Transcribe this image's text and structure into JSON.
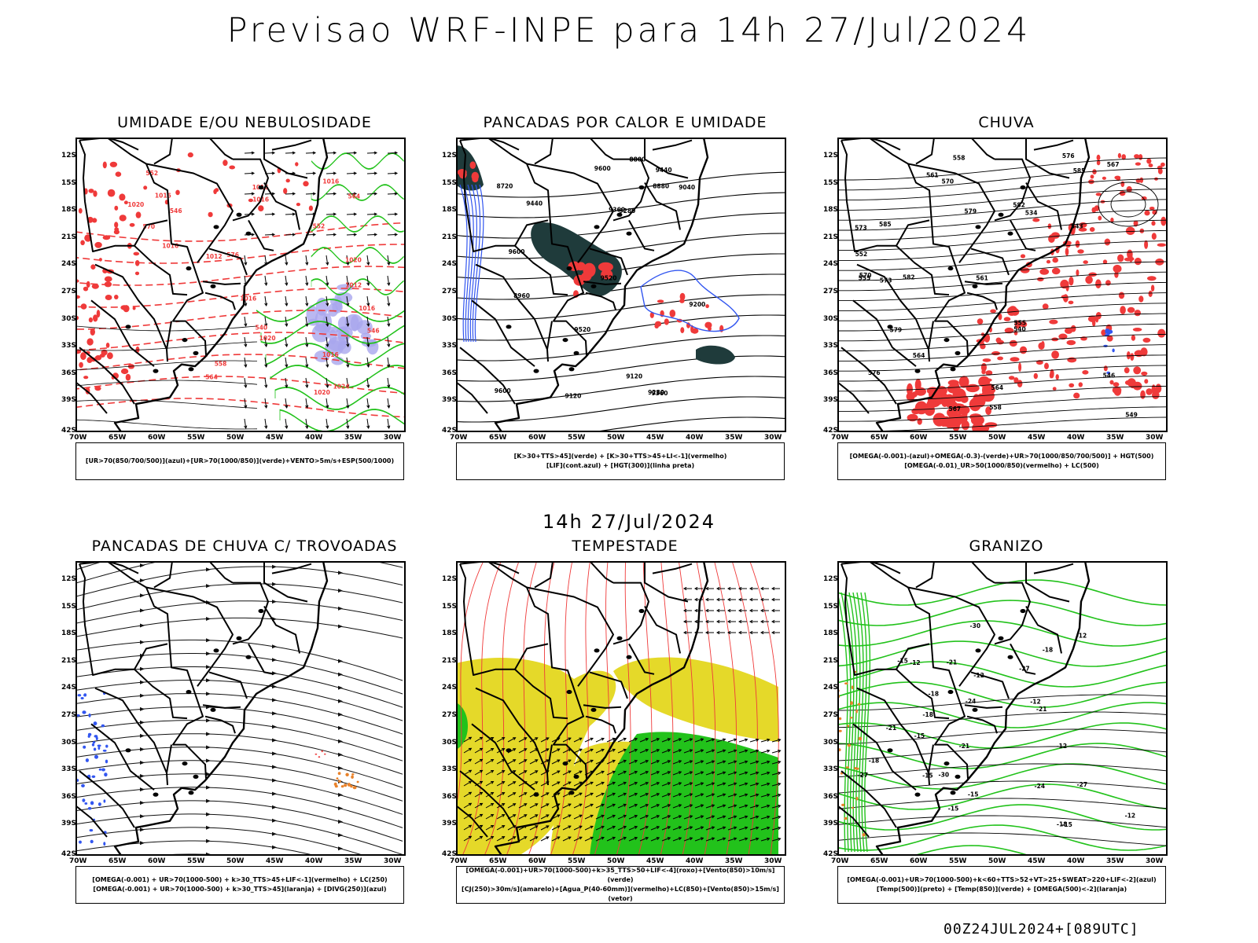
{
  "header": {
    "title": "Previsao WRF-INPE  para 14h 27/Jul/2024"
  },
  "middle": {
    "title": "14h 27/Jul/2024"
  },
  "footer": {
    "run_label": "00Z24JUL2024+[089UTC]"
  },
  "axes": {
    "lat_labels": [
      "12S",
      "15S",
      "18S",
      "21S",
      "24S",
      "27S",
      "30S",
      "33S",
      "36S",
      "39S",
      "42S"
    ],
    "lon_labels": [
      "70W",
      "65W",
      "60W",
      "55W",
      "50W",
      "45W",
      "40W",
      "35W",
      "30W"
    ]
  },
  "panels": [
    {
      "title": "UMIDADE E/OU NEBULOSIDADE",
      "legend": [
        "[UR>70(850/700/500)](azul)+[UR>70(1000/850)](verde)+VENTO>5m/s+ESP(500/1000)"
      ],
      "contour_labels": [
        "1016",
        "1016",
        "1012",
        "1020",
        "1016",
        "1016",
        "1020",
        "1024",
        "1016",
        "1016",
        "1020",
        "1012",
        "1016",
        "1016",
        "1020",
        "570",
        "576",
        "564",
        "558",
        "552",
        "546",
        "540",
        "564",
        "552",
        "546"
      ]
    },
    {
      "title": "PANCADAS POR CALOR E UMIDADE",
      "legend": [
        "[K>30+TTS>45](verde) + [K>30+TTS>45+LI<-1](vermelho)",
        "[LIF](cont.azul) + [HGT(300)](linha preta)"
      ],
      "contour_labels": [
        "9600",
        "9600",
        "9600",
        "9520",
        "9520",
        "9440",
        "9440",
        "9360",
        "9360",
        "9280",
        "9280",
        "9200",
        "9120",
        "9120",
        "9040",
        "8960",
        "8880",
        "8800",
        "8720"
      ]
    },
    {
      "title": "CHUVA",
      "legend": [
        "[OMEGA(-0.001)-(azul)+OMEGA(-0.3)-(verde)+UR>70(1000/850/700/500)] + HGT(500)",
        "[OMEGA(-0.01)_UR>50(1000/850)(vermelho) + LC(500)"
      ],
      "contour_labels": [
        "585",
        "582",
        "579",
        "576",
        "573",
        "570",
        "567",
        "564",
        "561",
        "558",
        "555",
        "552",
        "549",
        "546",
        "543",
        "540",
        "534",
        "585",
        "582",
        "579",
        "576",
        "573",
        "570",
        "567",
        "564",
        "561",
        "558",
        "555"
      ]
    },
    {
      "title": "PANCADAS DE CHUVA C/ TROVOADAS",
      "legend": [
        "[OMEGA(-0.001) + UR>70(1000-500) + k>30_TTS>45+LIF<-1](vermelho) + LC(250)",
        "[OMEGA(-0.001) + UR>70(1000-500) + k>30_TTS>45](laranja) + [DIVG(250)](azul)"
      ],
      "contour_labels": []
    },
    {
      "title": "TEMPESTADE",
      "legend": [
        "[OMEGA(-0.001)+UR>70(1000-500)+k>35_TTS>50+LIF<-4](roxo)+[Vento(850)>10m/s](verde)",
        "[CJ(250)>30m/s](amarelo)+[Agua_P(40-60mm)](vermelho)+LC(850)+[Vento(850)>15m/s](vetor)"
      ],
      "contour_labels": []
    },
    {
      "title": "GRANIZO",
      "legend": [
        "[OMEGA(-0.001)+UR>70(1000-500)+k<60+TTS>52+VT>25+SWEAT>220+LIF<-2](azul)",
        "[Temp(500)](preto) + [Temp(850)](verde) + [OMEGA(500)<-2](laranja)"
      ],
      "contour_labels": [
        "-12",
        "-12",
        "-15",
        "-15",
        "-18",
        "-18",
        "-21",
        "-21",
        "-24",
        "-27",
        "-30",
        "-15",
        "-12",
        "-18",
        "-12",
        "-15",
        "-12",
        "-15",
        "-18",
        "-21",
        "-24",
        "-27",
        "-30",
        "-12",
        "-15",
        "-18",
        "-21",
        "-27"
      ]
    }
  ],
  "colors": {
    "red": "#ef3a3a",
    "green": "#22c21b",
    "blue": "#3256f0",
    "lavender": "#a9a6ee",
    "yellow": "#e5d929",
    "darkteal": "#1f3b3b",
    "orange": "#e9822a",
    "black": "#000000"
  }
}
